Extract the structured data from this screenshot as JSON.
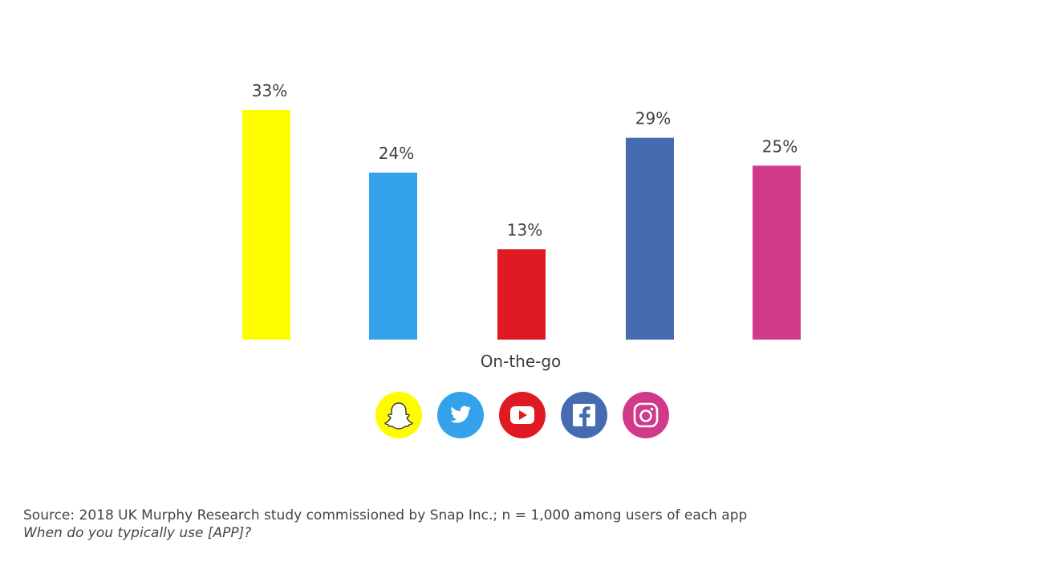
{
  "chart_data": {
    "type": "bar",
    "category": "On-the-go",
    "series": [
      {
        "icon": "snapchat-icon",
        "value": 33,
        "label": "33%",
        "color": "#FFFC00"
      },
      {
        "icon": "twitter-icon",
        "value": 24,
        "label": "24%",
        "color": "#33A2EA"
      },
      {
        "icon": "youtube-icon",
        "value": 13,
        "label": "13%",
        "color": "#E01A22"
      },
      {
        "icon": "facebook-icon",
        "value": 29,
        "label": "29%",
        "color": "#466BB1"
      },
      {
        "icon": "instagram-icon",
        "value": 25,
        "label": "25%",
        "color": "#D13A8A"
      }
    ],
    "ylim": [
      0,
      33
    ],
    "grid": false,
    "legend": "bottom"
  },
  "footnotes": {
    "source": "Source: 2018 UK Murphy Research study commissioned by Snap Inc.; n = 1,000 among users of each app",
    "question": "When do you typically use [APP]?"
  }
}
